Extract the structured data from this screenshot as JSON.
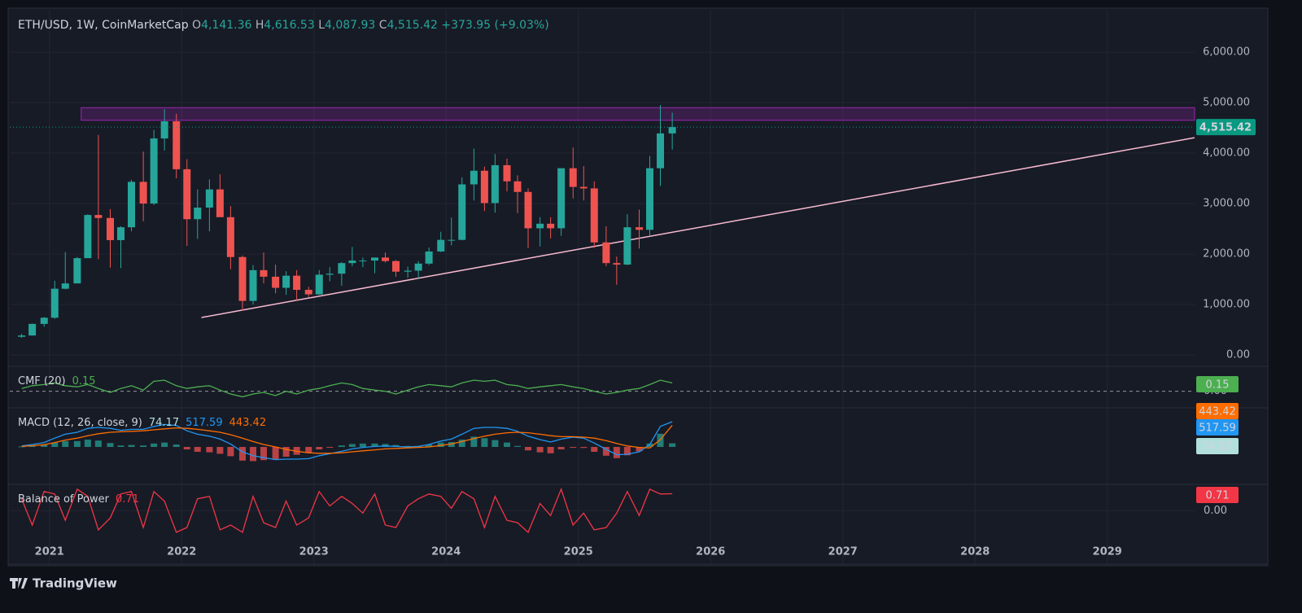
{
  "header": {
    "symbol": "ETH/USD, 1W, CoinMarketCap",
    "o_label": "O",
    "o": "4,141.36",
    "h_label": "H",
    "h": "4,616.53",
    "l_label": "L",
    "l": "4,087.93",
    "c_label": "C",
    "c": "4,515.42",
    "change": "+373.95 (+9.03%)"
  },
  "chart_data": [
    {
      "type": "candlestick",
      "x": [
        2020.79,
        2020.87,
        2020.96,
        2021.04,
        2021.12,
        2021.21,
        2021.29,
        2021.37,
        2021.46,
        2021.54,
        2021.62,
        2021.71,
        2021.79,
        2021.87,
        2021.96,
        2022.04,
        2022.12,
        2022.21,
        2022.29,
        2022.37,
        2022.46,
        2022.54,
        2022.62,
        2022.71,
        2022.79,
        2022.87,
        2022.96,
        2023.04,
        2023.12,
        2023.21,
        2023.29,
        2023.37,
        2023.46,
        2023.54,
        2023.62,
        2023.71,
        2023.79,
        2023.87,
        2023.96,
        2024.04,
        2024.12,
        2024.21,
        2024.29,
        2024.37,
        2024.46,
        2024.54,
        2024.62,
        2024.71,
        2024.79,
        2024.87,
        2024.96,
        2025.04,
        2025.12,
        2025.21,
        2025.29,
        2025.37,
        2025.46,
        2025.54,
        2025.62,
        2025.71
      ],
      "open": [
        360,
        386,
        615,
        737,
        1312,
        1417,
        1918,
        2773,
        2714,
        2275,
        2530,
        3430,
        3000,
        4290,
        4630,
        3680,
        2690,
        2920,
        3280,
        2730,
        1940,
        1070,
        1680,
        1550,
        1330,
        1570,
        1290,
        1200,
        1590,
        1610,
        1820,
        1870,
        1870,
        1930,
        1860,
        1650,
        1670,
        1810,
        2050,
        2280,
        2280,
        3380,
        3650,
        3010,
        3760,
        3440,
        3230,
        2510,
        2600,
        2510,
        3700,
        3330,
        3300,
        2230,
        1820,
        1790,
        2530,
        2480,
        3700,
        4390
      ],
      "high": [
        420,
        620,
        750,
        1470,
        2040,
        1940,
        2790,
        4360,
        2890,
        2550,
        3470,
        4030,
        4460,
        4870,
        4780,
        3880,
        3280,
        3480,
        3580,
        2950,
        1970,
        1780,
        2030,
        1790,
        1660,
        1680,
        1350,
        1680,
        1740,
        1840,
        2140,
        1930,
        1930,
        2030,
        1880,
        1750,
        1860,
        2130,
        2440,
        2720,
        3520,
        4090,
        3730,
        3980,
        3890,
        3560,
        3300,
        2730,
        2730,
        3680,
        4110,
        3740,
        3440,
        2550,
        1950,
        2790,
        2880,
        3940,
        4950,
        4800
      ],
      "low": [
        340,
        380,
        560,
        715,
        1300,
        1440,
        1920,
        1900,
        1730,
        1720,
        2450,
        2650,
        2970,
        4050,
        3500,
        2160,
        2300,
        2450,
        2780,
        1700,
        880,
        1000,
        1420,
        1220,
        1190,
        1080,
        1150,
        1190,
        1460,
        1370,
        1760,
        1740,
        1620,
        1830,
        1550,
        1530,
        1520,
        1780,
        2040,
        2170,
        2270,
        3060,
        2850,
        2820,
        3240,
        2810,
        2120,
        2150,
        2310,
        2360,
        3100,
        3060,
        2120,
        1760,
        1390,
        1780,
        2110,
        2370,
        3350,
        4070
      ],
      "close": [
        386,
        615,
        737,
        1312,
        1417,
        1918,
        2773,
        2714,
        2275,
        2530,
        3430,
        3000,
        4290,
        4630,
        3680,
        2690,
        2920,
        3280,
        2730,
        1940,
        1070,
        1680,
        1550,
        1330,
        1570,
        1290,
        1200,
        1590,
        1610,
        1820,
        1870,
        1870,
        1930,
        1860,
        1650,
        1670,
        1810,
        2050,
        2280,
        2280,
        3380,
        3650,
        3010,
        3760,
        3440,
        3230,
        2510,
        2600,
        2510,
        3700,
        3330,
        3300,
        2230,
        1820,
        1790,
        2530,
        2480,
        3700,
        4390,
        4515
      ],
      "up_color": "#26a69a",
      "down_color": "#ef5350",
      "xlim": [
        2020.7,
        2029.66
      ],
      "xticks": [
        2021,
        2022,
        2023,
        2024,
        2025,
        2026,
        2027,
        2028,
        2029
      ],
      "ylim": [
        -226,
        6840
      ],
      "yticks": [
        {
          "value": 0,
          "label": "0.00"
        },
        {
          "value": 1000,
          "label": "1,000.00"
        },
        {
          "value": 2000,
          "label": "2,000.00"
        },
        {
          "value": 3000,
          "label": "3,000.00"
        },
        {
          "value": 4000,
          "label": "4,000.00"
        },
        {
          "value": 5000,
          "label": "5,000.00"
        },
        {
          "value": 6000,
          "label": "6,000.00"
        }
      ],
      "grid": true,
      "zone": {
        "xmin": 2021.24,
        "ymin": 4650,
        "ymax": 4900,
        "color": "#9c27b0"
      },
      "trendline": {
        "x": [
          2022.15,
          2029.66
        ],
        "y": [
          742,
          4306
        ],
        "color": "#f8bbd0"
      },
      "last_price": {
        "value": 4515.42,
        "label": "4,515.42",
        "color": "#089981"
      }
    },
    {
      "type": "line",
      "title": "CMF (20)",
      "ylim": [
        -0.3,
        0.45
      ],
      "yticks": [
        {
          "value": 0,
          "label": "0.00"
        }
      ],
      "series": [
        {
          "color": "#4caf50",
          "value_label": "0.15",
          "values": [
            0.05,
            0.1,
            0.12,
            0.15,
            0.1,
            0.08,
            0.12,
            0.05,
            -0.02,
            0.05,
            0.1,
            0.02,
            0.18,
            0.2,
            0.1,
            0.05,
            0.08,
            0.1,
            0.02,
            -0.05,
            -0.1,
            -0.05,
            -0.02,
            -0.08,
            0.0,
            -0.05,
            0.02,
            0.05,
            0.1,
            0.15,
            0.12,
            0.05,
            0.02,
            0.0,
            -0.05,
            0.02,
            0.08,
            0.12,
            0.1,
            0.08,
            0.15,
            0.2,
            0.18,
            0.2,
            0.12,
            0.1,
            0.05,
            0.08,
            0.1,
            0.12,
            0.08,
            0.05,
            0.0,
            -0.05,
            -0.02,
            0.02,
            0.05,
            0.12,
            0.2,
            0.15
          ]
        }
      ]
    },
    {
      "type": "macd",
      "title": "MACD (12, 26, close, 9)",
      "ylim": [
        -766,
        800
      ],
      "series": [
        {
          "kind": "histogram",
          "color": "#b2dfdb",
          "up_color": "#26a69a",
          "down_color": "#ff5252",
          "value_label": "74.17",
          "values": [
            10,
            25,
            45,
            90,
            120,
            120,
            150,
            130,
            80,
            30,
            40,
            30,
            70,
            90,
            50,
            -50,
            -100,
            -110,
            -140,
            -190,
            -280,
            -290,
            -270,
            -260,
            -200,
            -160,
            -120,
            -50,
            -10,
            30,
            60,
            70,
            70,
            60,
            40,
            20,
            20,
            50,
            90,
            100,
            150,
            210,
            180,
            140,
            90,
            20,
            -70,
            -110,
            -130,
            -50,
            -10,
            -20,
            -100,
            -180,
            -230,
            -170,
            -90,
            70,
            270,
            74.17
          ]
        },
        {
          "kind": "line",
          "color": "#2196f3",
          "value_label": "517.59",
          "values": [
            20,
            50,
            90,
            180,
            260,
            300,
            380,
            400,
            380,
            340,
            360,
            360,
            420,
            460,
            440,
            330,
            260,
            220,
            160,
            60,
            -100,
            -180,
            -220,
            -260,
            -250,
            -250,
            -240,
            -180,
            -140,
            -90,
            -40,
            -10,
            10,
            20,
            10,
            0,
            10,
            50,
            120,
            160,
            260,
            380,
            400,
            400,
            380,
            320,
            220,
            150,
            100,
            160,
            200,
            180,
            80,
            -50,
            -160,
            -150,
            -100,
            50,
            420,
            517.59
          ]
        },
        {
          "kind": "line",
          "color": "#ff6d00",
          "value_label": "443.42",
          "values": [
            10,
            25,
            45,
            90,
            140,
            180,
            230,
            270,
            300,
            310,
            320,
            330,
            350,
            370,
            390,
            380,
            360,
            330,
            300,
            250,
            180,
            110,
            50,
            0,
            -50,
            -90,
            -120,
            -130,
            -130,
            -120,
            -100,
            -80,
            -60,
            -40,
            -30,
            -20,
            -10,
            0,
            30,
            60,
            110,
            170,
            220,
            260,
            290,
            300,
            290,
            260,
            230,
            210,
            210,
            200,
            180,
            130,
            70,
            20,
            -10,
            -20,
            150,
            443.42
          ]
        }
      ]
    },
    {
      "type": "line",
      "title": "Balance of Power",
      "ylim": [
        -2.23,
        1.1
      ],
      "yticks": [
        {
          "value": 0,
          "label": "0.00"
        }
      ],
      "series": [
        {
          "color": "#f23645",
          "value_label": "0.71",
          "values": [
            0.5,
            -0.6,
            0.8,
            0.7,
            -0.4,
            0.9,
            0.6,
            -0.8,
            -0.3,
            0.7,
            0.8,
            -0.7,
            0.8,
            0.4,
            -0.9,
            -0.7,
            0.5,
            0.6,
            -0.8,
            -0.6,
            -0.9,
            0.6,
            -0.5,
            -0.7,
            0.4,
            -0.6,
            -0.3,
            0.8,
            0.2,
            0.6,
            0.3,
            -0.1,
            0.7,
            -0.6,
            -0.7,
            0.2,
            0.5,
            0.7,
            0.6,
            0.1,
            0.8,
            0.5,
            -0.7,
            0.6,
            -0.4,
            -0.5,
            -0.9,
            0.3,
            -0.2,
            0.9,
            -0.6,
            -0.1,
            -0.8,
            -0.7,
            -0.1,
            0.8,
            -0.2,
            0.9,
            0.7,
            0.71
          ]
        }
      ]
    }
  ],
  "footer": "TradingView"
}
